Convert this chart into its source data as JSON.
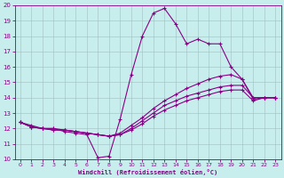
{
  "xlabel": "Windchill (Refroidissement éolien,°C)",
  "xlim": [
    0,
    23
  ],
  "ylim": [
    10,
    20
  ],
  "xticks": [
    0,
    1,
    2,
    3,
    4,
    5,
    6,
    7,
    8,
    9,
    10,
    11,
    12,
    13,
    14,
    15,
    16,
    17,
    18,
    19,
    20,
    21,
    22,
    23
  ],
  "yticks": [
    10,
    11,
    12,
    13,
    14,
    15,
    16,
    17,
    18,
    19,
    20
  ],
  "background_color": "#c8eded",
  "grid_color": "#9fbfbf",
  "line_color": "#880088",
  "lines": [
    {
      "x": [
        0,
        1,
        2,
        3,
        4,
        5,
        6,
        7,
        8,
        9,
        10,
        11,
        12,
        13,
        14,
        15,
        16,
        17,
        18,
        19,
        20,
        21,
        22,
        23
      ],
      "y": [
        12.4,
        12.2,
        12.0,
        12.0,
        11.8,
        11.7,
        11.6,
        10.1,
        10.2,
        12.6,
        15.5,
        18.0,
        19.5,
        19.8,
        18.8,
        17.5,
        17.8,
        17.5,
        17.5,
        16.0,
        15.2,
        14.0,
        14.0,
        14.0
      ]
    },
    {
      "x": [
        0,
        1,
        2,
        3,
        4,
        5,
        6,
        7,
        8,
        9,
        10,
        11,
        12,
        13,
        14,
        15,
        16,
        17,
        18,
        19,
        20,
        21,
        22,
        23
      ],
      "y": [
        12.4,
        12.1,
        12.0,
        12.0,
        11.9,
        11.8,
        11.7,
        11.6,
        11.5,
        11.7,
        12.2,
        12.7,
        13.3,
        13.8,
        14.2,
        14.6,
        14.9,
        15.2,
        15.4,
        15.5,
        15.2,
        13.9,
        14.0,
        14.0
      ]
    },
    {
      "x": [
        0,
        1,
        2,
        3,
        4,
        5,
        6,
        7,
        8,
        9,
        10,
        11,
        12,
        13,
        14,
        15,
        16,
        17,
        18,
        19,
        20,
        21,
        22,
        23
      ],
      "y": [
        12.4,
        12.1,
        12.0,
        11.9,
        11.9,
        11.8,
        11.7,
        11.6,
        11.5,
        11.6,
        12.0,
        12.5,
        13.0,
        13.5,
        13.8,
        14.1,
        14.3,
        14.5,
        14.7,
        14.8,
        14.8,
        14.0,
        14.0,
        14.0
      ]
    },
    {
      "x": [
        0,
        1,
        2,
        3,
        4,
        5,
        6,
        7,
        8,
        9,
        10,
        11,
        12,
        13,
        14,
        15,
        16,
        17,
        18,
        19,
        20,
        21,
        22,
        23
      ],
      "y": [
        12.4,
        12.1,
        12.0,
        11.9,
        11.9,
        11.8,
        11.7,
        11.6,
        11.5,
        11.6,
        11.9,
        12.3,
        12.8,
        13.2,
        13.5,
        13.8,
        14.0,
        14.2,
        14.4,
        14.5,
        14.5,
        13.8,
        14.0,
        14.0
      ]
    }
  ]
}
